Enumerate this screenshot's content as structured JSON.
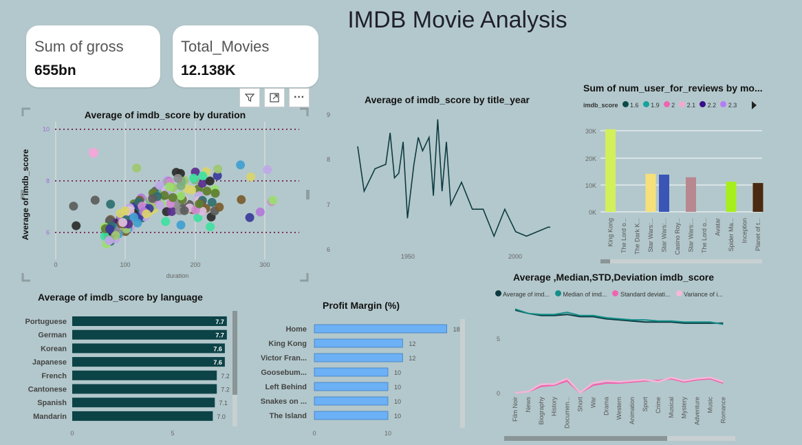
{
  "title": "IMDB Movie Analysis",
  "cards": [
    {
      "caption": "Sum of gross",
      "value": "655bn"
    },
    {
      "caption": "Total_Movies",
      "value": "12.138K"
    }
  ],
  "toolbar": {
    "filter_icon": "filter-icon",
    "focus_icon": "focus-mode-icon",
    "more_label": "···"
  },
  "scatter": {
    "title": "Average of imdb_score by duration",
    "xlabel": "duration",
    "ylabel": "Average of imdb_score",
    "xticks": [
      "0",
      "100",
      "200",
      "300"
    ],
    "yticks": [
      "10",
      "8",
      "6"
    ],
    "refs": [
      "10",
      "8",
      "6"
    ]
  },
  "line": {
    "title": "Average of imdb_score by title_year",
    "yticks": [
      "9",
      "8",
      "7",
      "6"
    ],
    "xticks": [
      "1950",
      "2000"
    ]
  },
  "reviews": {
    "title": "Sum of num_user_for_reviews by mo...",
    "legend_label": "imdb_score",
    "legend": [
      {
        "name": "1.6",
        "color": "#0b4a4a"
      },
      {
        "name": "1.9",
        "color": "#15a39a"
      },
      {
        "name": "2",
        "color": "#ef64b0"
      },
      {
        "name": "2.1",
        "color": "#f3a9d0"
      },
      {
        "name": "2.2",
        "color": "#3a0d8c"
      },
      {
        "name": "2.3",
        "color": "#b57cf5"
      }
    ],
    "yticks": [
      "30K",
      "20K",
      "10K",
      "0K"
    ],
    "categories": [
      "King Kong",
      "The Lord o...",
      "The Dark K...",
      "Star Wars:...",
      "Star Wars:...",
      "Casino Roy...",
      "Star Wars:...",
      "The Lord o...",
      "Avatar",
      "Spider Ma...",
      "Inception",
      "Planet of t..."
    ]
  },
  "language": {
    "title": "Average of imdb_score by language",
    "rows": [
      {
        "label": "Portuguese",
        "value": "7.7"
      },
      {
        "label": "German",
        "value": "7.7"
      },
      {
        "label": "Korean",
        "value": "7.6"
      },
      {
        "label": "Japanese",
        "value": "7.6"
      },
      {
        "label": "French",
        "value": "7.2"
      },
      {
        "label": "Cantonese",
        "value": "7.2"
      },
      {
        "label": "Spanish",
        "value": "7.1"
      },
      {
        "label": "Mandarin",
        "value": "7.0"
      }
    ],
    "xticks": [
      "0",
      "5"
    ]
  },
  "profit": {
    "title": "Profit Margin (%)",
    "rows": [
      {
        "label": "Home",
        "value": "18"
      },
      {
        "label": "King Kong",
        "value": "12"
      },
      {
        "label": "Victor Fran...",
        "value": "12"
      },
      {
        "label": "Goosebum...",
        "value": "10"
      },
      {
        "label": "Left Behind",
        "value": "10"
      },
      {
        "label": "Snakes on ...",
        "value": "10"
      },
      {
        "label": "The Island",
        "value": "10"
      }
    ],
    "xticks": [
      "0",
      "10"
    ]
  },
  "stats": {
    "title": "Average ,Median,STD,Deviation imdb_score",
    "legend": [
      {
        "name": "Average of imd...",
        "color": "#0b3a40"
      },
      {
        "name": "Median of imd...",
        "color": "#138f8a"
      },
      {
        "name": "Standard deviati...",
        "color": "#ef64b0"
      },
      {
        "name": "Variance of i...",
        "color": "#f5b8d8"
      }
    ],
    "yticks": [
      "5",
      "0"
    ],
    "categories": [
      "Film Noir",
      "News",
      "Biography",
      "History",
      "Documen...",
      "Short",
      "War",
      "Drama",
      "Western",
      "Animation",
      "Sport",
      "Crime",
      "Musical",
      "Mystery",
      "Adventure",
      "Music",
      "Romance"
    ]
  },
  "chart_data": [
    {
      "type": "line",
      "title": "Average of imdb_score by title_year",
      "x": [
        1927,
        1930,
        1935,
        1940,
        1942,
        1944,
        1946,
        1948,
        1950,
        1953,
        1955,
        1957,
        1960,
        1962,
        1964,
        1966,
        1968,
        1970,
        1975,
        1980,
        1985,
        1990,
        1995,
        2000,
        2005,
        2010,
        2015,
        2016
      ],
      "y": [
        8.3,
        7.3,
        7.8,
        7.9,
        8.6,
        7.6,
        7.7,
        8.4,
        6.7,
        7.9,
        8.5,
        8.2,
        8.5,
        7.2,
        8.9,
        7.3,
        8.4,
        7.0,
        7.5,
        6.9,
        6.9,
        6.3,
        6.9,
        6.4,
        6.3,
        6.4,
        6.5,
        6.5
      ],
      "ylim": [
        6,
        9
      ]
    },
    {
      "type": "bar",
      "title": "Sum of num_user_for_reviews by mo...",
      "categories": [
        "King Kong",
        "The Lord o...",
        "The Dark K...",
        "Star Wars:...",
        "Star Wars:...",
        "Casino Roy...",
        "Star Wars:...",
        "The Lord o...",
        "Avatar",
        "Spider Ma...",
        "Inception",
        "Planet of t..."
      ],
      "values": [
        31500,
        0,
        0,
        14500,
        14200,
        0,
        13200,
        0,
        0,
        11500,
        0,
        11000
      ],
      "colors": [
        "#d2f05a",
        "",
        "",
        "#f6e07a",
        "#3a55b5",
        "",
        "#b88890",
        "",
        "",
        "#a6ef1a",
        "",
        "#4a2a10"
      ],
      "ylim": [
        0,
        32000
      ]
    },
    {
      "type": "bar",
      "title": "Average of imdb_score by language",
      "categories": [
        "Portuguese",
        "German",
        "Korean",
        "Japanese",
        "French",
        "Cantonese",
        "Spanish",
        "Mandarin"
      ],
      "values": [
        7.7,
        7.7,
        7.6,
        7.6,
        7.2,
        7.2,
        7.1,
        7.0
      ],
      "xlim": [
        0,
        8
      ]
    },
    {
      "type": "bar",
      "title": "Profit Margin (%)",
      "categories": [
        "Home",
        "King Kong",
        "Victor Fran...",
        "Goosebum...",
        "Left Behind",
        "Snakes on ...",
        "The Island"
      ],
      "values": [
        18,
        12,
        12,
        10,
        10,
        10,
        10
      ],
      "xlim": [
        0,
        20
      ]
    },
    {
      "type": "line",
      "title": "Average ,Median,STD,Deviation imdb_score",
      "categories": [
        "Film Noir",
        "News",
        "Biography",
        "History",
        "Documen...",
        "Short",
        "War",
        "Drama",
        "Western",
        "Animation",
        "Sport",
        "Crime",
        "Musical",
        "Mystery",
        "Adventure",
        "Music",
        "Romance"
      ],
      "series": [
        {
          "name": "Average of imd...",
          "values": [
            7.6,
            7.3,
            7.1,
            7.1,
            7.2,
            7.0,
            7.0,
            6.8,
            6.7,
            6.6,
            6.5,
            6.5,
            6.5,
            6.4,
            6.4,
            6.4,
            6.4
          ]
        },
        {
          "name": "Median of imd...",
          "values": [
            7.7,
            7.3,
            7.2,
            7.2,
            7.4,
            7.1,
            7.1,
            6.9,
            6.8,
            6.7,
            6.7,
            6.6,
            6.6,
            6.5,
            6.5,
            6.5,
            6.3
          ]
        },
        {
          "name": "Standard deviati...",
          "values": [
            0.0,
            0.1,
            0.6,
            0.7,
            1.1,
            0.0,
            0.7,
            0.9,
            0.9,
            1.0,
            1.1,
            1.1,
            1.3,
            1.0,
            1.2,
            1.3,
            0.9
          ]
        },
        {
          "name": "Variance of i...",
          "values": [
            0.0,
            0.1,
            0.8,
            0.8,
            1.3,
            0.0,
            0.9,
            1.1,
            1.0,
            1.1,
            1.2,
            1.0,
            1.4,
            1.1,
            1.3,
            1.4,
            1.0
          ]
        }
      ],
      "ylim": [
        0,
        9
      ]
    }
  ]
}
